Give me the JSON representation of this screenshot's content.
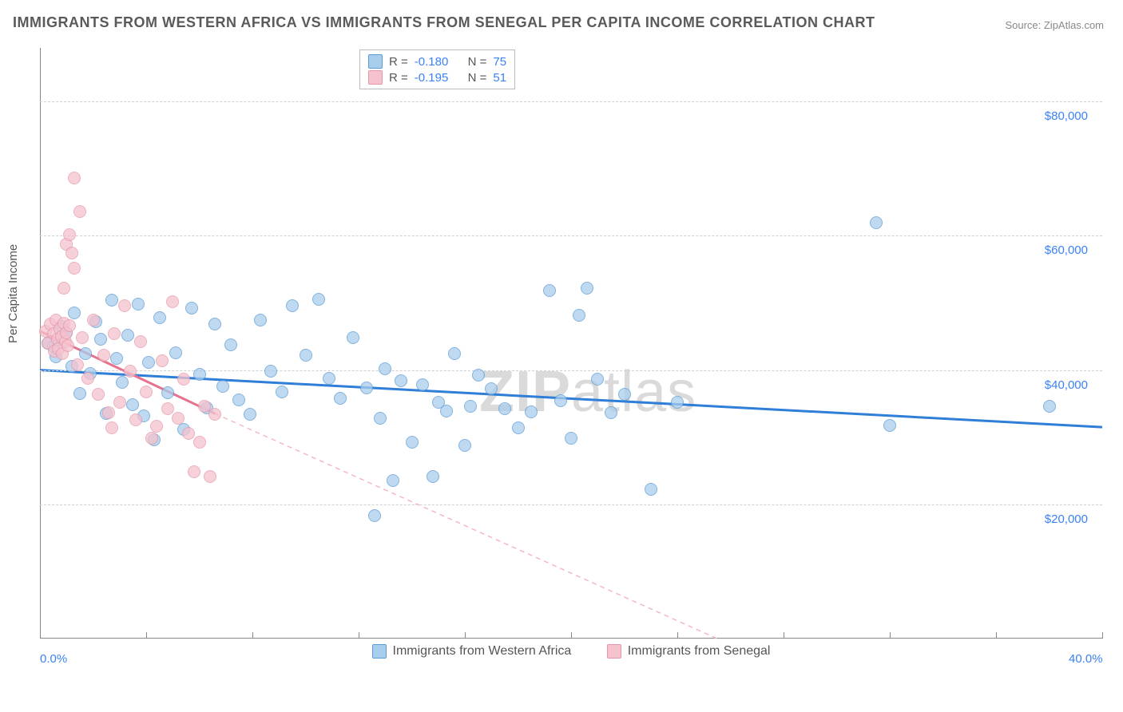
{
  "title": "IMMIGRANTS FROM WESTERN AFRICA VS IMMIGRANTS FROM SENEGAL PER CAPITA INCOME CORRELATION CHART",
  "source": "Source: ZipAtlas.com",
  "watermark_bold": "ZIP",
  "watermark_rest": "atlas",
  "chart": {
    "type": "scatter",
    "ylabel": "Per Capita Income",
    "xlim": [
      0,
      40
    ],
    "ylim": [
      0,
      88000
    ],
    "x_tick_positions": [
      0,
      4,
      8,
      12,
      16,
      20,
      24,
      28,
      32,
      36,
      40
    ],
    "x_tick_labels": {
      "0": "0.0%",
      "40": "40.0%"
    },
    "y_ticks": [
      20000,
      40000,
      60000,
      80000
    ],
    "y_tick_labels": [
      "$20,000",
      "$40,000",
      "$60,000",
      "$80,000"
    ],
    "grid_color": "#d0d0d0",
    "background_color": "#ffffff",
    "axis_color": "#888888",
    "tick_label_color": "#3b82f6",
    "marker_radius": 8,
    "marker_stroke_width": 1.5,
    "marker_fill_opacity": 0.35,
    "series": [
      {
        "name": "Immigrants from Western Africa",
        "color_stroke": "#5b9bd5",
        "color_fill": "#a9cdec",
        "R": "-0.180",
        "N": "75",
        "regression": {
          "x1": 0,
          "y1": 40000,
          "x2": 40,
          "y2": 31500,
          "stroke": "#2f7ed8",
          "width": 3,
          "dash": ""
        },
        "points": [
          [
            0.3,
            44000
          ],
          [
            0.5,
            43500
          ],
          [
            0.6,
            42000
          ],
          [
            0.8,
            46500
          ],
          [
            1.0,
            45500
          ],
          [
            1.2,
            40500
          ],
          [
            1.3,
            48500
          ],
          [
            1.5,
            36500
          ],
          [
            1.7,
            42500
          ],
          [
            1.9,
            39500
          ],
          [
            2.1,
            47200
          ],
          [
            2.3,
            44600
          ],
          [
            2.5,
            33500
          ],
          [
            2.7,
            50400
          ],
          [
            2.9,
            41800
          ],
          [
            3.1,
            38200
          ],
          [
            3.3,
            45200
          ],
          [
            3.5,
            34800
          ],
          [
            3.7,
            49800
          ],
          [
            3.9,
            33200
          ],
          [
            4.1,
            41200
          ],
          [
            4.3,
            29600
          ],
          [
            4.5,
            47800
          ],
          [
            4.8,
            36600
          ],
          [
            5.1,
            42600
          ],
          [
            5.4,
            31200
          ],
          [
            5.7,
            49200
          ],
          [
            6.0,
            39400
          ],
          [
            6.3,
            34400
          ],
          [
            6.6,
            46800
          ],
          [
            6.9,
            37600
          ],
          [
            7.2,
            43800
          ],
          [
            7.5,
            35600
          ],
          [
            7.9,
            33400
          ],
          [
            8.3,
            47400
          ],
          [
            8.7,
            39800
          ],
          [
            9.1,
            36800
          ],
          [
            9.5,
            49600
          ],
          [
            10.0,
            42200
          ],
          [
            10.5,
            50600
          ],
          [
            10.9,
            38800
          ],
          [
            11.3,
            35800
          ],
          [
            11.8,
            44800
          ],
          [
            12.3,
            37400
          ],
          [
            12.6,
            18300
          ],
          [
            12.8,
            32800
          ],
          [
            13.0,
            40200
          ],
          [
            13.3,
            23600
          ],
          [
            13.6,
            38400
          ],
          [
            14.0,
            29200
          ],
          [
            14.4,
            37800
          ],
          [
            14.8,
            24200
          ],
          [
            15.0,
            35200
          ],
          [
            15.3,
            33900
          ],
          [
            15.6,
            42400
          ],
          [
            16.0,
            28800
          ],
          [
            16.2,
            34600
          ],
          [
            16.5,
            39200
          ],
          [
            17.0,
            37200
          ],
          [
            17.5,
            34200
          ],
          [
            18.0,
            31400
          ],
          [
            18.5,
            33800
          ],
          [
            19.2,
            51800
          ],
          [
            19.6,
            35400
          ],
          [
            20.0,
            29800
          ],
          [
            20.3,
            48200
          ],
          [
            20.6,
            52200
          ],
          [
            21.0,
            38600
          ],
          [
            21.5,
            33600
          ],
          [
            22.0,
            36400
          ],
          [
            23.0,
            22200
          ],
          [
            24.0,
            35200
          ],
          [
            31.5,
            62000
          ],
          [
            32.0,
            31800
          ],
          [
            38.0,
            34600
          ]
        ]
      },
      {
        "name": "Immigrants from Senegal",
        "color_stroke": "#e597a9",
        "color_fill": "#f5c2ce",
        "R": "-0.195",
        "N": "51",
        "regression_solid": {
          "x1": 0,
          "y1": 45800,
          "x2": 6.6,
          "y2": 33500,
          "stroke": "#e6738d",
          "width": 3
        },
        "regression_dash": {
          "x1": 6.6,
          "y1": 33500,
          "x2": 25.5,
          "y2": 0,
          "stroke": "#f3b8c6",
          "width": 1.5,
          "dash": "6,5"
        },
        "points": [
          [
            0.2,
            45800
          ],
          [
            0.3,
            44000
          ],
          [
            0.4,
            46800
          ],
          [
            0.5,
            45400
          ],
          [
            0.55,
            42800
          ],
          [
            0.6,
            47400
          ],
          [
            0.65,
            44600
          ],
          [
            0.7,
            43200
          ],
          [
            0.75,
            46200
          ],
          [
            0.8,
            45000
          ],
          [
            0.85,
            42400
          ],
          [
            0.9,
            47000
          ],
          [
            0.95,
            44200
          ],
          [
            1.0,
            45600
          ],
          [
            1.05,
            43600
          ],
          [
            1.1,
            46600
          ],
          [
            1.0,
            58800
          ],
          [
            1.1,
            60200
          ],
          [
            1.2,
            57400
          ],
          [
            1.3,
            55200
          ],
          [
            1.3,
            68600
          ],
          [
            1.5,
            63600
          ],
          [
            0.9,
            52200
          ],
          [
            1.4,
            40800
          ],
          [
            1.6,
            44800
          ],
          [
            1.8,
            38800
          ],
          [
            2.0,
            47400
          ],
          [
            2.2,
            36400
          ],
          [
            2.4,
            42200
          ],
          [
            2.6,
            33600
          ],
          [
            2.7,
            31400
          ],
          [
            2.8,
            45400
          ],
          [
            3.0,
            35200
          ],
          [
            3.2,
            49600
          ],
          [
            3.4,
            39800
          ],
          [
            3.6,
            32600
          ],
          [
            3.8,
            44200
          ],
          [
            4.0,
            36800
          ],
          [
            4.2,
            29800
          ],
          [
            4.4,
            31600
          ],
          [
            4.6,
            41400
          ],
          [
            4.8,
            34200
          ],
          [
            5.0,
            50200
          ],
          [
            5.2,
            32800
          ],
          [
            5.4,
            38600
          ],
          [
            5.6,
            30600
          ],
          [
            5.8,
            24800
          ],
          [
            6.0,
            29200
          ],
          [
            6.2,
            34600
          ],
          [
            6.4,
            24200
          ],
          [
            6.6,
            33400
          ]
        ]
      }
    ],
    "legend_top_labels": {
      "R": "R =",
      "N": "N ="
    },
    "legend_bottom": [
      {
        "label": "Immigrants from Western Africa",
        "swatch_fill": "#a9cdec",
        "swatch_stroke": "#5b9bd5"
      },
      {
        "label": "Immigrants from Senegal",
        "swatch_fill": "#f5c2ce",
        "swatch_stroke": "#e597a9"
      }
    ]
  }
}
